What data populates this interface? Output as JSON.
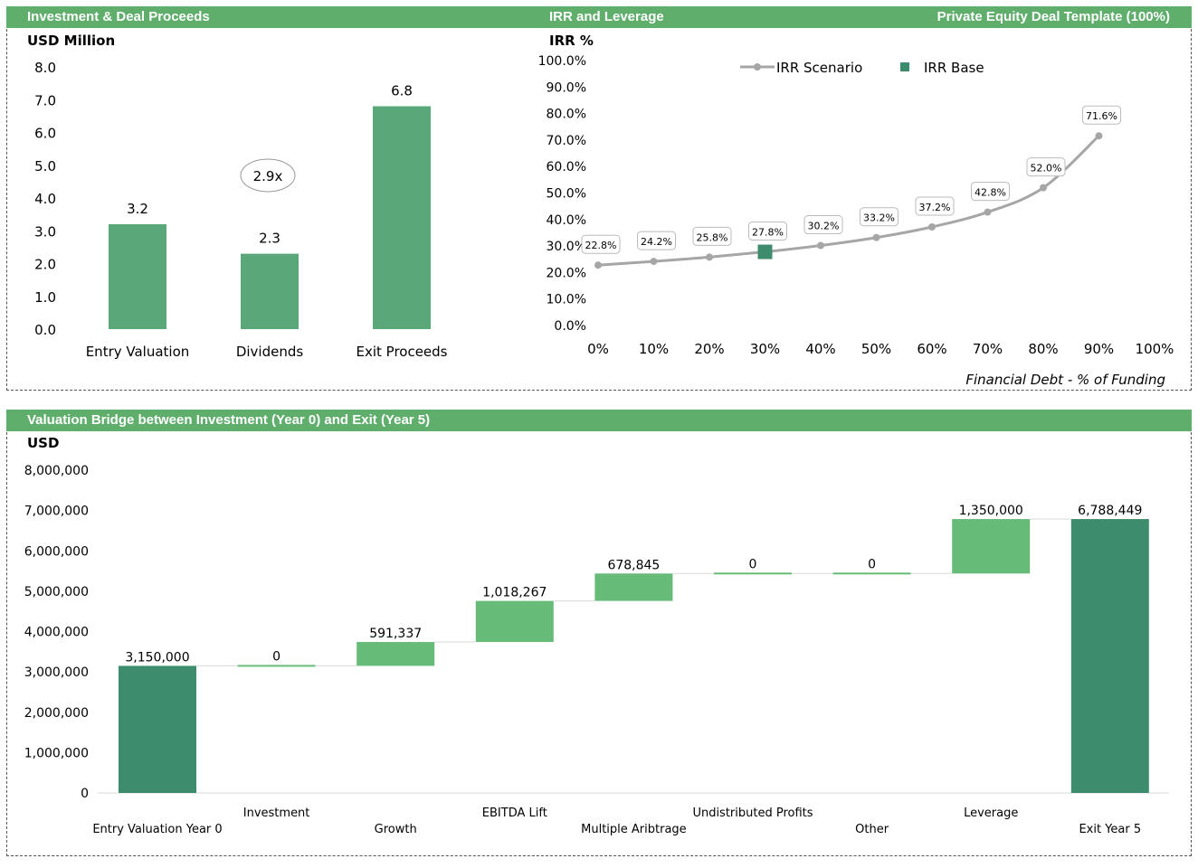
{
  "top_panel": {
    "header_left": "Investment & Deal Proceeds",
    "header_center": "IRR and Leverage",
    "header_right": "Private Equity Deal Template (100%)"
  },
  "bottom_panel": {
    "header": "Valuation Bridge between Investment (Year 0) and Exit (Year 5)"
  },
  "colors": {
    "header_green": "#5fae6c",
    "bar_green": "#5aa87a",
    "dark_green": "#3e8c6e",
    "bridge_green": "#66bb78",
    "line_gray": "#a6a6a6"
  },
  "chart_data": [
    {
      "type": "bar",
      "ylabel": "USD Million",
      "ylim": [
        0,
        8
      ],
      "yticks": [
        "0.0",
        "1.0",
        "2.0",
        "3.0",
        "4.0",
        "5.0",
        "6.0",
        "7.0",
        "8.0"
      ],
      "categories": [
        "Entry Valuation",
        "Dividends",
        "Exit Proceeds"
      ],
      "values": [
        3.2,
        2.3,
        6.8
      ],
      "labels": [
        "3.2",
        "2.3",
        "6.8"
      ],
      "annotation": "2.9x"
    },
    {
      "type": "line",
      "ylabel": "IRR %",
      "xlabel": "Financial Debt - % of Funding",
      "ylim": [
        0,
        100
      ],
      "yticks": [
        "0.0%",
        "10.0%",
        "20.0%",
        "30.0%",
        "40.0%",
        "50.0%",
        "60.0%",
        "70.0%",
        "80.0%",
        "90.0%",
        "100.0%"
      ],
      "xticks": [
        "0%",
        "10%",
        "20%",
        "30%",
        "40%",
        "50%",
        "60%",
        "70%",
        "80%",
        "90%",
        "100%"
      ],
      "legend": "top",
      "series": [
        {
          "name": "IRR Scenario",
          "x": [
            0,
            10,
            20,
            30,
            40,
            50,
            60,
            70,
            80,
            90
          ],
          "y": [
            22.8,
            24.2,
            25.8,
            27.8,
            30.2,
            33.2,
            37.2,
            42.8,
            52.0,
            71.6
          ],
          "labels": [
            "22.8%",
            "24.2%",
            "25.8%",
            "27.8%",
            "30.2%",
            "33.2%",
            "37.2%",
            "42.8%",
            "52.0%",
            "71.6%"
          ]
        },
        {
          "name": "IRR Base",
          "x": [
            30
          ],
          "y": [
            27.8
          ]
        }
      ]
    },
    {
      "type": "bar",
      "subtype": "waterfall",
      "ylabel": "USD",
      "ylim": [
        0,
        8000000
      ],
      "yticks": [
        "0",
        "1,000,000",
        "2,000,000",
        "3,000,000",
        "4,000,000",
        "5,000,000",
        "6,000,000",
        "7,000,000",
        "8,000,000"
      ],
      "categories": [
        "Entry Valuation Year 0",
        "Investment",
        "Growth",
        "EBITDA Lift",
        "Multiple Aribtrage",
        "Undistributed Profits",
        "Other",
        "Leverage",
        "Exit Year 5"
      ],
      "values": [
        3150000,
        0,
        591337,
        1018267,
        678845,
        0,
        0,
        1350000,
        6788449
      ],
      "labels": [
        "3,150,000",
        "0",
        "591,337",
        "1,018,267",
        "678,845",
        "0",
        "0",
        "1,350,000",
        "6,788,449"
      ],
      "kinds": [
        "total",
        "delta",
        "delta",
        "delta",
        "delta",
        "delta",
        "delta",
        "delta",
        "total"
      ]
    }
  ]
}
